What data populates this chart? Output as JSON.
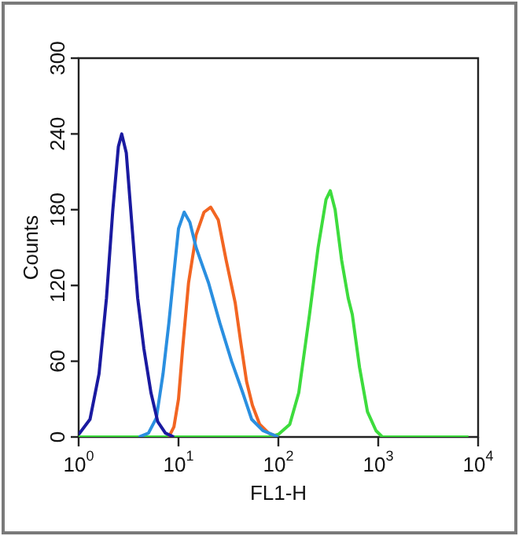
{
  "chart_data": {
    "type": "line",
    "xlabel": "FL1-H",
    "ylabel": "Counts",
    "log": "x",
    "grid": false,
    "legend": false,
    "marker": "none",
    "line_style": "solid",
    "xlim": [
      1,
      10000
    ],
    "xticks": [
      {
        "value": 1,
        "label": "10$^{0}$"
      },
      {
        "value": 10,
        "label": "10$^{1}$"
      },
      {
        "value": 100,
        "label": "10$^{2}$"
      },
      {
        "value": 1000,
        "label": "10$^{3}$"
      },
      {
        "value": 10000,
        "label": "10$^{4}$"
      }
    ],
    "ylim": [
      0,
      300
    ],
    "yticks": [
      0,
      60,
      120,
      180,
      240,
      300
    ],
    "series": [
      {
        "color": "#1a1aa0",
        "x": [
          1,
          1.3,
          1.6,
          1.9,
          2.2,
          2.5,
          2.7,
          3.0,
          3.4,
          3.9,
          4.5,
          5.3,
          6.2,
          7.4,
          9
        ],
        "values": [
          2,
          14,
          50,
          110,
          180,
          230,
          240,
          225,
          170,
          110,
          70,
          35,
          12,
          3,
          0
        ]
      },
      {
        "color": "#2a8fe0",
        "x": [
          4,
          5,
          6,
          7,
          8,
          9,
          10,
          11.4,
          13,
          15,
          20,
          26,
          34,
          44,
          54,
          70,
          100
        ],
        "values": [
          0,
          3,
          15,
          50,
          90,
          130,
          165,
          178,
          170,
          150,
          122,
          90,
          60,
          35,
          14,
          5,
          0
        ]
      },
      {
        "color": "#f26522",
        "x": [
          8,
          9,
          10,
          11,
          12.6,
          15,
          18,
          21,
          25,
          30,
          37,
          42,
          48,
          55,
          65,
          80,
          100
        ],
        "values": [
          0,
          8,
          30,
          70,
          122,
          160,
          178,
          182,
          172,
          140,
          106,
          75,
          44,
          25,
          10,
          3,
          0
        ]
      },
      {
        "color": "#3ddc3d",
        "x": [
          1,
          80,
          100,
          130,
          160,
          205,
          250,
          300,
          331,
          370,
          430,
          500,
          550,
          650,
          780,
          950,
          1100,
          8000
        ],
        "values": [
          0,
          0,
          2,
          10,
          35,
          97,
          150,
          188,
          195,
          180,
          140,
          110,
          97,
          55,
          20,
          5,
          0,
          0
        ]
      }
    ]
  }
}
